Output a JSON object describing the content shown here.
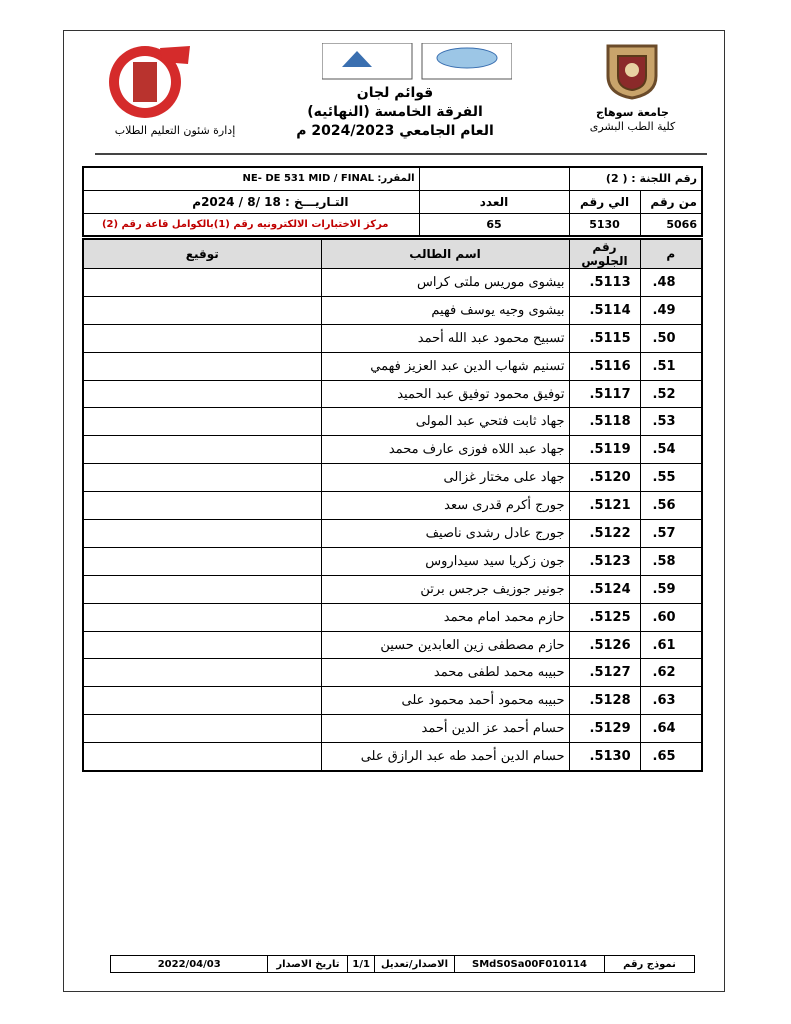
{
  "header": {
    "university": "جامعة سوهاج",
    "faculty": "كلية الطب البشرى",
    "title_lines": [
      "قوائم لجان",
      "الفرقة الخامسة (النهائيه)",
      "العام الجامعي 2024/2023 م"
    ],
    "department": "إدارة شئون التعليم الطلاب"
  },
  "info": {
    "committee": "رقم اللجنة : ( 2)",
    "course": "المقرر: NE- DE 531 MID / FINAL",
    "from_label": "من رقم",
    "to_label": "الي رقم",
    "count_label": "العدد",
    "date": "التـاريـــخ : 18 /8 / 2024م",
    "from": "5066",
    "to": "5130",
    "count": "65",
    "location": "مركز الاختبارات الالكترونيه رقم (1)بالكوامل قاعة رقم (2)"
  },
  "table": {
    "headers": [
      "م",
      "رقم الجلوس",
      "اسم الطالب",
      "توقيع"
    ],
    "rows": [
      [
        ".48",
        ".5113",
        "بيشوى موريس ملتى كراس"
      ],
      [
        ".49",
        ".5114",
        "بيشوى وجيه يوسف فهيم"
      ],
      [
        ".50",
        ".5115",
        "تسبيح محمود عبد الله أحمد"
      ],
      [
        ".51",
        ".5116",
        "تسنيم شهاب الدين عبد العزيز فهمي"
      ],
      [
        ".52",
        ".5117",
        "توفيق محمود توفيق عبد الحميد"
      ],
      [
        ".53",
        ".5118",
        "جهاد ثابت فتحي عبد المولى"
      ],
      [
        ".54",
        ".5119",
        "جهاد عبد اللاه فوزى عارف محمد"
      ],
      [
        ".55",
        ".5120",
        "جهاد على مختار غزالى"
      ],
      [
        ".56",
        ".5121",
        "جورج أكرم قدرى سعد"
      ],
      [
        ".57",
        ".5122",
        "جورج عادل رشدى ناصيف"
      ],
      [
        ".58",
        ".5123",
        "جون زكريا سيد سيداروس"
      ],
      [
        ".59",
        ".5124",
        "جونير جوزيف جرجس برتن"
      ],
      [
        ".60",
        ".5125",
        "حازم محمد امام محمد"
      ],
      [
        ".61",
        ".5126",
        "حازم مصطفى زين العابدين حسين"
      ],
      [
        ".62",
        ".5127",
        "حبيبه محمد لطفى محمد"
      ],
      [
        ".63",
        ".5128",
        "حبيبه محمود أحمد محمود على"
      ],
      [
        ".64",
        ".5129",
        "حسام أحمد عز الدين أحمد"
      ],
      [
        ".65",
        ".5130",
        "حسام الدين أحمد طه عبد الرازق على"
      ]
    ]
  },
  "footer": [
    "نموذج رقم",
    "SMdS0Sa00F010114",
    "الاصدار/تعديل",
    "1/1",
    "تاريخ الاصدار",
    "2022/04/03"
  ]
}
